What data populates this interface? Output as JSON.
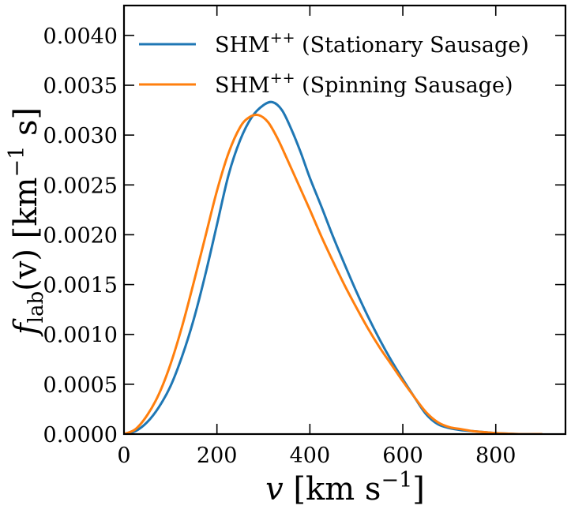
{
  "chart_data": {
    "type": "line",
    "xlabel": {
      "var": "v",
      "unit_pre": " [km s",
      "unit_sup": "−1",
      "unit_post": "]"
    },
    "ylabel": {
      "var": "f",
      "sub": "lab",
      "arg": "(v)",
      "unit_pre": " [km",
      "unit_sup": "−1",
      "unit_post": " s]"
    },
    "xlim": [
      0,
      950
    ],
    "ylim": [
      0,
      0.0043
    ],
    "xticks": [
      0,
      200,
      400,
      600,
      800
    ],
    "yticks": [
      0.0,
      0.0005,
      0.001,
      0.0015,
      0.002,
      0.0025,
      0.003,
      0.0035,
      0.004
    ],
    "xtick_labels": [
      "0",
      "200",
      "400",
      "600",
      "800"
    ],
    "ytick_labels": [
      "0.0000",
      "0.0005",
      "0.0010",
      "0.0015",
      "0.0020",
      "0.0025",
      "0.0030",
      "0.0035",
      "0.0040"
    ],
    "grid": false,
    "legend_position": "top-left",
    "series": [
      {
        "name": "SHM",
        "name_sup": "++",
        "name_rest": " (Stationary Sausage)",
        "color": "#1f77b4",
        "x": [
          0,
          25,
          50,
          75,
          100,
          125,
          150,
          175,
          200,
          225,
          250,
          275,
          300,
          320,
          340,
          360,
          380,
          400,
          425,
          450,
          475,
          500,
          525,
          550,
          575,
          600,
          625,
          650,
          675,
          700,
          725,
          750,
          775,
          800,
          850,
          900
        ],
        "y": [
          0.0,
          3e-05,
          0.00012,
          0.00027,
          0.00048,
          0.00078,
          0.00115,
          0.0016,
          0.0021,
          0.0026,
          0.00295,
          0.00318,
          0.0033,
          0.00333,
          0.00325,
          0.00306,
          0.00283,
          0.00257,
          0.00228,
          0.00198,
          0.0017,
          0.00143,
          0.00118,
          0.00095,
          0.00074,
          0.00055,
          0.00037,
          0.0002,
          0.0001,
          6e-05,
          4e-05,
          3e-05,
          2e-05,
          1e-05,
          0.0,
          0.0
        ]
      },
      {
        "name": "SHM",
        "name_sup": "++",
        "name_rest": " (Spinning Sausage)",
        "color": "#ff7f0e",
        "x": [
          0,
          25,
          50,
          75,
          100,
          125,
          150,
          175,
          200,
          225,
          250,
          270,
          290,
          310,
          330,
          350,
          375,
          400,
          425,
          450,
          475,
          500,
          525,
          550,
          575,
          600,
          625,
          650,
          675,
          700,
          725,
          750,
          775,
          800,
          850,
          900
        ],
        "y": [
          0.0,
          5e-05,
          0.00019,
          0.0004,
          0.0007,
          0.00108,
          0.00152,
          0.00198,
          0.00244,
          0.00282,
          0.00308,
          0.00318,
          0.0032,
          0.00313,
          0.00297,
          0.00277,
          0.00251,
          0.00225,
          0.00198,
          0.00173,
          0.00149,
          0.00127,
          0.00106,
          0.00087,
          0.0007,
          0.00053,
          0.00037,
          0.00022,
          0.00012,
          7e-05,
          5e-05,
          3e-05,
          2e-05,
          1e-05,
          0.0,
          0.0
        ]
      }
    ]
  }
}
